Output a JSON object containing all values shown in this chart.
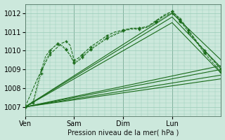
{
  "xlabel": "Pression niveau de la mer( hPa )",
  "background_color": "#cce8dc",
  "plot_bg_color": "#cce8dc",
  "grid_color": "#99ccb8",
  "line_color": "#1a6b1a",
  "ylim": [
    1006.5,
    1012.5
  ],
  "day_labels": [
    "Ven",
    "Sam",
    "Dim",
    "Lun"
  ],
  "day_positions": [
    0,
    48,
    96,
    144
  ],
  "xlim": [
    0,
    192
  ],
  "solid_lines": [
    {
      "x": [
        0,
        192
      ],
      "y": [
        1007.0,
        1009.0
      ]
    },
    {
      "x": [
        0,
        192
      ],
      "y": [
        1007.0,
        1008.5
      ]
    },
    {
      "x": [
        0,
        192
      ],
      "y": [
        1007.0,
        1008.7
      ]
    },
    {
      "x": [
        0,
        192
      ],
      "y": [
        1007.0,
        1009.2
      ]
    },
    {
      "x": [
        0,
        144,
        192
      ],
      "y": [
        1007.0,
        1012.0,
        1009.5
      ]
    },
    {
      "x": [
        0,
        144,
        192
      ],
      "y": [
        1007.0,
        1011.8,
        1009.1
      ]
    },
    {
      "x": [
        0,
        144,
        192
      ],
      "y": [
        1007.0,
        1011.5,
        1008.8
      ]
    }
  ],
  "dashed_line": {
    "x": [
      0,
      12,
      24,
      36,
      40,
      44,
      48,
      52,
      56,
      60,
      64,
      72,
      80,
      88,
      96,
      104,
      112,
      120,
      128,
      136,
      144,
      148,
      152,
      156,
      160,
      168,
      176,
      184,
      192
    ],
    "y": [
      1007.0,
      1008.5,
      1009.8,
      1010.4,
      1010.5,
      1010.3,
      1009.5,
      1009.6,
      1009.8,
      1010.0,
      1010.2,
      1010.5,
      1010.8,
      1011.0,
      1011.1,
      1011.2,
      1011.2,
      1011.3,
      1011.6,
      1011.9,
      1012.1,
      1011.9,
      1011.7,
      1011.4,
      1011.1,
      1010.5,
      1010.0,
      1009.5,
      1009.0
    ]
  },
  "marker_lines": [
    {
      "x": [
        0,
        4,
        8,
        12,
        16,
        20,
        24,
        28,
        32,
        36,
        40,
        44,
        48,
        52,
        56,
        60,
        64,
        72,
        80,
        88,
        96,
        104,
        112,
        120,
        128,
        136,
        144,
        148,
        152,
        156,
        160,
        168,
        176,
        184,
        192
      ],
      "y": [
        1007.0,
        1007.1,
        1007.2,
        1008.0,
        1008.8,
        1009.5,
        1009.9,
        1010.2,
        1010.4,
        1010.3,
        1010.1,
        1009.8,
        1009.4,
        1009.5,
        1009.7,
        1009.9,
        1010.1,
        1010.4,
        1010.7,
        1010.9,
        1011.1,
        1011.2,
        1011.2,
        1011.3,
        1011.5,
        1011.8,
        1012.1,
        1011.9,
        1011.6,
        1011.4,
        1011.1,
        1010.5,
        1009.9,
        1009.5,
        1009.0
      ],
      "style": "dotted"
    },
    {
      "x": [
        0,
        4,
        8,
        12,
        16,
        20,
        24,
        28,
        32,
        36,
        40,
        44,
        48,
        52,
        56,
        60,
        64,
        72,
        80,
        88,
        96,
        104,
        112,
        120,
        128,
        136,
        144,
        148,
        152,
        156,
        160,
        168,
        176,
        184,
        192
      ],
      "y": [
        1007.0,
        1007.15,
        1007.3,
        1008.2,
        1009.0,
        1009.7,
        1010.0,
        1010.2,
        1010.35,
        1010.25,
        1010.05,
        1009.75,
        1009.35,
        1009.45,
        1009.65,
        1009.85,
        1010.05,
        1010.35,
        1010.65,
        1010.85,
        1011.05,
        1011.15,
        1011.15,
        1011.25,
        1011.55,
        1011.85,
        1012.0,
        1011.85,
        1011.55,
        1011.3,
        1011.0,
        1010.45,
        1009.85,
        1009.35,
        1008.85
      ],
      "style": "dashed"
    }
  ]
}
